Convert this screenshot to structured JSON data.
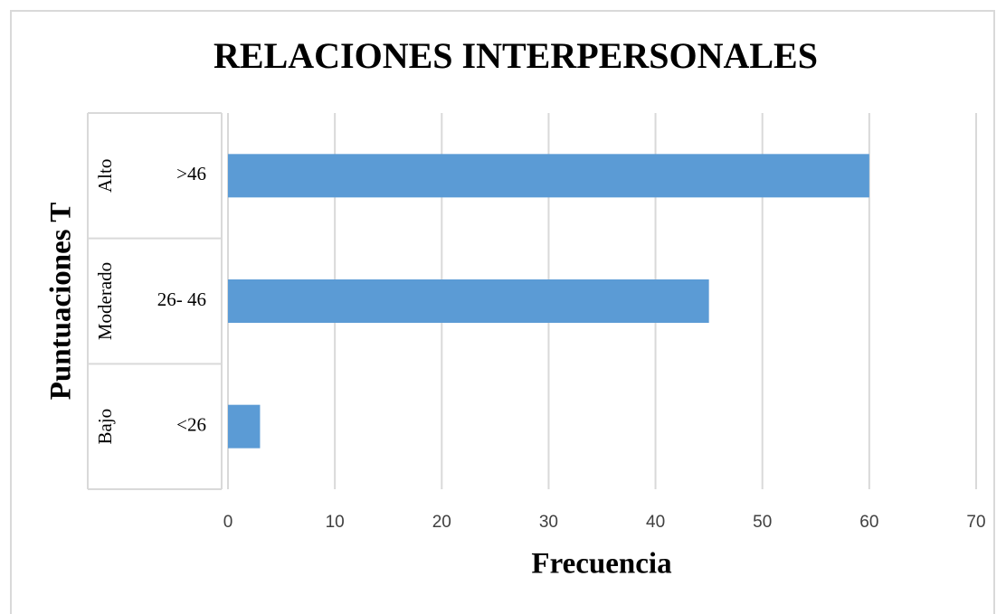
{
  "chart_data": {
    "type": "bar",
    "orientation": "horizontal",
    "title": "RELACIONES INTERPERSONALES",
    "x_label": "Frecuencia",
    "y_label": "Puntuaciones T",
    "groups": [
      "Alto",
      "Moderado",
      "Bajo"
    ],
    "categories": [
      ">46",
      "26- 46",
      "<26"
    ],
    "values": [
      60,
      45,
      3
    ],
    "color": "#5b9bd5",
    "xlim": [
      0,
      70
    ],
    "xticks": [
      0,
      10,
      20,
      30,
      40,
      50,
      60,
      70
    ],
    "grid": true
  }
}
